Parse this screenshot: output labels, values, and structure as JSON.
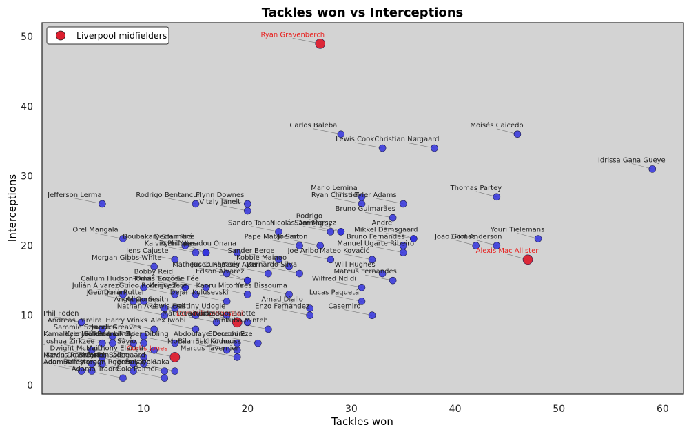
{
  "chart_data": {
    "type": "scatter",
    "title": "Tackles won vs Interceptions",
    "xlabel": "Tackles won",
    "ylabel": "Interceptions",
    "xlim": [
      0.2,
      62
    ],
    "ylim": [
      -1.3,
      52
    ],
    "xticks": [
      10,
      20,
      30,
      40,
      50,
      60
    ],
    "yticks": [
      0,
      10,
      20,
      30,
      40,
      50
    ],
    "grid": false,
    "plot_background": "#d3d3d3",
    "legend": {
      "position": "top-left",
      "entries": [
        "Liverpool midfielders"
      ]
    },
    "colors": {
      "points": "#3333dd",
      "highlight": "#dc1f2f",
      "highlight_text": "#e8201e"
    },
    "points": [
      {
        "name": "Ryan Gravenberch",
        "x": 27,
        "y": 49,
        "highlight": true
      },
      {
        "name": "Alexis Mac Allister",
        "x": 47,
        "y": 18,
        "highlight": true
      },
      {
        "name": "Dominik Szoboszlai",
        "x": 19,
        "y": 9,
        "highlight": true
      },
      {
        "name": "Curtis Jones",
        "x": 13,
        "y": 4,
        "highlight": true
      },
      {
        "name": "Carlos Baleba",
        "x": 29,
        "y": 36
      },
      {
        "name": "Lewis Cook",
        "x": 33,
        "y": 34
      },
      {
        "name": "Christian Nørgaard",
        "x": 38,
        "y": 34
      },
      {
        "name": "Moisés Caicedo",
        "x": 46,
        "y": 36
      },
      {
        "name": "Idrissa Gana Gueye",
        "x": 59,
        "y": 31
      },
      {
        "name": "Thomas Partey",
        "x": 44,
        "y": 27
      },
      {
        "name": "Mario Lemina",
        "x": 31,
        "y": 27
      },
      {
        "name": "Ryan Christie",
        "x": 31,
        "y": 26
      },
      {
        "name": "Tyler Adams",
        "x": 35,
        "y": 26
      },
      {
        "name": "Bruno Guimarães",
        "x": 34,
        "y": 24
      },
      {
        "name": "Jefferson Lerma",
        "x": 6,
        "y": 26
      },
      {
        "name": "Rodrigo Bentancur",
        "x": 15,
        "y": 26
      },
      {
        "name": "Flynn Downes",
        "x": 20,
        "y": 26
      },
      {
        "name": "Vitaly Janelt",
        "x": 20,
        "y": 25
      },
      {
        "name": "Sandro Tonali",
        "x": 23,
        "y": 22
      },
      {
        "name": "Pape Matar Sarr",
        "x": 25,
        "y": 20
      },
      {
        "name": "Nicolás Domínguez",
        "x": 28,
        "y": 22
      },
      {
        "name": "Sam Morsy",
        "x": 29,
        "y": 22
      },
      {
        "name": "Rodrigo",
        "x": 29,
        "y": 22
      },
      {
        "name": "Mikkel Damsgaard",
        "x": 36,
        "y": 21
      },
      {
        "name": "André",
        "x": 36,
        "y": 21
      },
      {
        "name": "João Gomes",
        "x": 42,
        "y": 20
      },
      {
        "name": "Youri Tielemans",
        "x": 48,
        "y": 21
      },
      {
        "name": "Elliot Anderson",
        "x": 44,
        "y": 20
      },
      {
        "name": "Bruno Fernandes",
        "x": 35,
        "y": 20
      },
      {
        "name": "Manuel Ugarte Ribeiro",
        "x": 35,
        "y": 19
      },
      {
        "name": "Mateo Kovačić",
        "x": 32,
        "y": 18
      },
      {
        "name": "Joelinton",
        "x": 27,
        "y": 20
      },
      {
        "name": "Joe Aribo",
        "x": 28,
        "y": 18
      },
      {
        "name": "Sander Berge",
        "x": 23,
        "y": 18
      },
      {
        "name": "Kobbie Mainoo",
        "x": 24,
        "y": 17
      },
      {
        "name": "Boubakary Soumaré",
        "x": 14,
        "y": 20
      },
      {
        "name": "Ryan Yates",
        "x": 16,
        "y": 19
      },
      {
        "name": "Amadou Onana",
        "x": 19,
        "y": 19
      },
      {
        "name": "Declan Rice",
        "x": 16,
        "y": 19
      },
      {
        "name": "Kalvin Phillips",
        "x": 15,
        "y": 19
      },
      {
        "name": "Orel Mangala",
        "x": 8,
        "y": 21
      },
      {
        "name": "Jens Cajuste",
        "x": 13,
        "y": 18
      },
      {
        "name": "Morgan Gibbs-White",
        "x": 11,
        "y": 17
      },
      {
        "name": "Matheus Cunha",
        "x": 18,
        "y": 16
      },
      {
        "name": "Yasin Ayari",
        "x": 22,
        "y": 16
      },
      {
        "name": "Bernardo Silva",
        "x": 25,
        "y": 16
      },
      {
        "name": "Will Hughes",
        "x": 33,
        "y": 16
      },
      {
        "name": "Mateus Fernandes",
        "x": 34,
        "y": 15
      },
      {
        "name": "Wilfred Ndidi",
        "x": 31,
        "y": 14
      },
      {
        "name": "Lucas Paquetá",
        "x": 31,
        "y": 12
      },
      {
        "name": "Casemiro",
        "x": 32,
        "y": 10
      },
      {
        "name": "Yves Bissouma",
        "x": 24,
        "y": 13
      },
      {
        "name": "Edson Álvarez",
        "x": 20,
        "y": 15
      },
      {
        "name": "Jacob Ramsey",
        "x": 20,
        "y": 15
      },
      {
        "name": "Callum Hudson-Odoi",
        "x": 10,
        "y": 14
      },
      {
        "name": "Tomáš Souček",
        "x": 14,
        "y": 14
      },
      {
        "name": "Bobby Reid",
        "x": 14,
        "y": 14
      },
      {
        "name": "Enzo Le Fée",
        "x": 16,
        "y": 14
      },
      {
        "name": "Kenny Tete",
        "x": 15,
        "y": 13
      },
      {
        "name": "Kaoru Mitoma",
        "x": 20,
        "y": 13
      },
      {
        "name": "Guido Rodríguez",
        "x": 13,
        "y": 13
      },
      {
        "name": "Julián Álvarez",
        "x": 8,
        "y": 13
      },
      {
        "name": "Jhon Durán",
        "x": 9,
        "y": 12
      },
      {
        "name": "Georginio Rutter",
        "x": 10,
        "y": 12
      },
      {
        "name": "Dejan Kulusevski",
        "x": 18,
        "y": 12
      },
      {
        "name": "Amad Diallo",
        "x": 26,
        "y": 11
      },
      {
        "name": "Adam Smith",
        "x": 13,
        "y": 11
      },
      {
        "name": "Angel Gomes",
        "x": 12,
        "y": 11
      },
      {
        "name": "Lewis Hall",
        "x": 15,
        "y": 10
      },
      {
        "name": "Nathan Aké",
        "x": 12,
        "y": 10
      },
      {
        "name": "Destiny Udogie",
        "x": 18,
        "y": 10
      },
      {
        "name": "Facundo Buonanotte",
        "x": 20,
        "y": 9
      },
      {
        "name": "Enzo Fernández",
        "x": 26,
        "y": 10
      },
      {
        "name": "Matheus Nunes",
        "x": 17,
        "y": 9
      },
      {
        "name": "Phil Foden",
        "x": 4,
        "y": 9
      },
      {
        "name": "Andreas Pereira",
        "x": 6,
        "y": 8
      },
      {
        "name": "Harry Winks",
        "x": 11,
        "y": 8
      },
      {
        "name": "Alex Iwobi",
        "x": 15,
        "y": 8
      },
      {
        "name": "Yankuba Minteh",
        "x": 22,
        "y": 8
      },
      {
        "name": "Sammie Szmodics",
        "x": 7,
        "y": 7
      },
      {
        "name": "Jacob Greaves",
        "x": 10,
        "y": 7
      },
      {
        "name": "Kamaldeen Sulemana",
        "x": 6,
        "y": 6
      },
      {
        "name": "Pedro Neto",
        "x": 10,
        "y": 6
      },
      {
        "name": "Kyle Walker",
        "x": 7,
        "y": 6
      },
      {
        "name": "Joelinton Lima",
        "x": 9,
        "y": 6
      },
      {
        "name": "Tyler Dibling",
        "x": 13,
        "y": 6
      },
      {
        "name": "Abdoulaye Doucouré",
        "x": 19,
        "y": 6
      },
      {
        "name": "Eberechi Eze",
        "x": 21,
        "y": 6
      },
      {
        "name": "Joshua Zirkzee",
        "x": 5,
        "y": 5
      },
      {
        "name": "Dwight McNeil",
        "x": 6,
        "y": 4
      },
      {
        "name": "Sávio",
        "x": 11,
        "y": 5
      },
      {
        "name": "Mohammed Kudus",
        "x": 18,
        "y": 5
      },
      {
        "name": "Bilal El Khannouss",
        "x": 19,
        "y": 5
      },
      {
        "name": "Kevin De Bruyne",
        "x": 6,
        "y": 3
      },
      {
        "name": "Anthony Elanga",
        "x": 10,
        "y": 4
      },
      {
        "name": "Marcus Rashford",
        "x": 5,
        "y": 3
      },
      {
        "name": "Carlos Soler",
        "x": 9,
        "y": 3
      },
      {
        "name": "Adam Armstrong",
        "x": 4,
        "y": 2
      },
      {
        "name": "Martin Ødegaard",
        "x": 10,
        "y": 3
      },
      {
        "name": "Marcus Tavernier",
        "x": 19,
        "y": 4
      },
      {
        "name": "Morgan Rogers",
        "x": 9,
        "y": 2
      },
      {
        "name": "Leon Bailey",
        "x": 5,
        "y": 2
      },
      {
        "name": "Jeremy Doku",
        "x": 12,
        "y": 2
      },
      {
        "name": "Adama Traoré",
        "x": 8,
        "y": 1
      },
      {
        "name": "Bukayo Saka",
        "x": 13,
        "y": 2
      },
      {
        "name": "Cole Palmer",
        "x": 12,
        "y": 1
      }
    ]
  }
}
